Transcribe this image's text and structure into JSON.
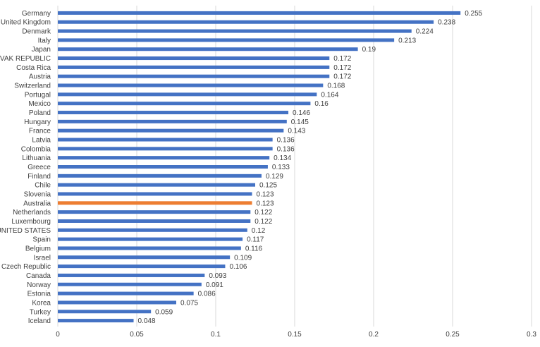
{
  "chart_data": {
    "type": "bar",
    "orientation": "horizontal",
    "categories": [
      "Germany",
      "United Kingdom",
      "Denmark",
      "Italy",
      "Japan",
      "SLOVAK REPUBLIC",
      "Costa Rica",
      "Austria",
      "Switzerland",
      "Portugal",
      "Mexico",
      "Poland",
      "Hungary",
      "France",
      "Latvia",
      "Colombia",
      "Lithuania",
      "Greece",
      "Finland",
      "Chile",
      "Slovenia",
      "Australia",
      "Netherlands",
      "Luxembourg",
      "UNITED STATES",
      "Spain",
      "Belgium",
      "Israel",
      "Czech Republic",
      "Canada",
      "Norway",
      "Estonia",
      "Korea",
      "Turkey",
      "Iceland"
    ],
    "values": [
      0.255,
      0.238,
      0.224,
      0.213,
      0.19,
      0.172,
      0.172,
      0.172,
      0.168,
      0.164,
      0.16,
      0.146,
      0.145,
      0.143,
      0.136,
      0.136,
      0.134,
      0.133,
      0.129,
      0.125,
      0.123,
      0.123,
      0.122,
      0.122,
      0.12,
      0.117,
      0.116,
      0.109,
      0.106,
      0.093,
      0.091,
      0.086,
      0.075,
      0.059,
      0.048
    ],
    "value_labels": [
      "0.255",
      "0.238",
      "0.224",
      "0.213",
      "0.19",
      "0.172",
      "0.172",
      "0.172",
      "0.168",
      "0.164",
      "0.16",
      "0.146",
      "0.145",
      "0.143",
      "0.136",
      "0.136",
      "0.134",
      "0.133",
      "0.129",
      "0.125",
      "0.123",
      "0.123",
      "0.122",
      "0.122",
      "0.12",
      "0.117",
      "0.116",
      "0.109",
      "0.106",
      "0.093",
      "0.091",
      "0.086",
      "0.075",
      "0.059",
      "0.048"
    ],
    "xlim": [
      0,
      0.3
    ],
    "x_ticks": [
      "0",
      "0.05",
      "0.1",
      "0.15",
      "0.2",
      "0.25",
      "0.3"
    ],
    "x_tick_values": [
      0,
      0.05,
      0.1,
      0.15,
      0.2,
      0.25,
      0.3
    ],
    "grid": true,
    "title": "",
    "xlabel": "",
    "ylabel": "",
    "colors": {
      "bar": "#4472c4",
      "highlight": "#ed7d31",
      "grid": "#d9d9d9",
      "text": "#404040"
    },
    "highlight_category": "Australia"
  }
}
